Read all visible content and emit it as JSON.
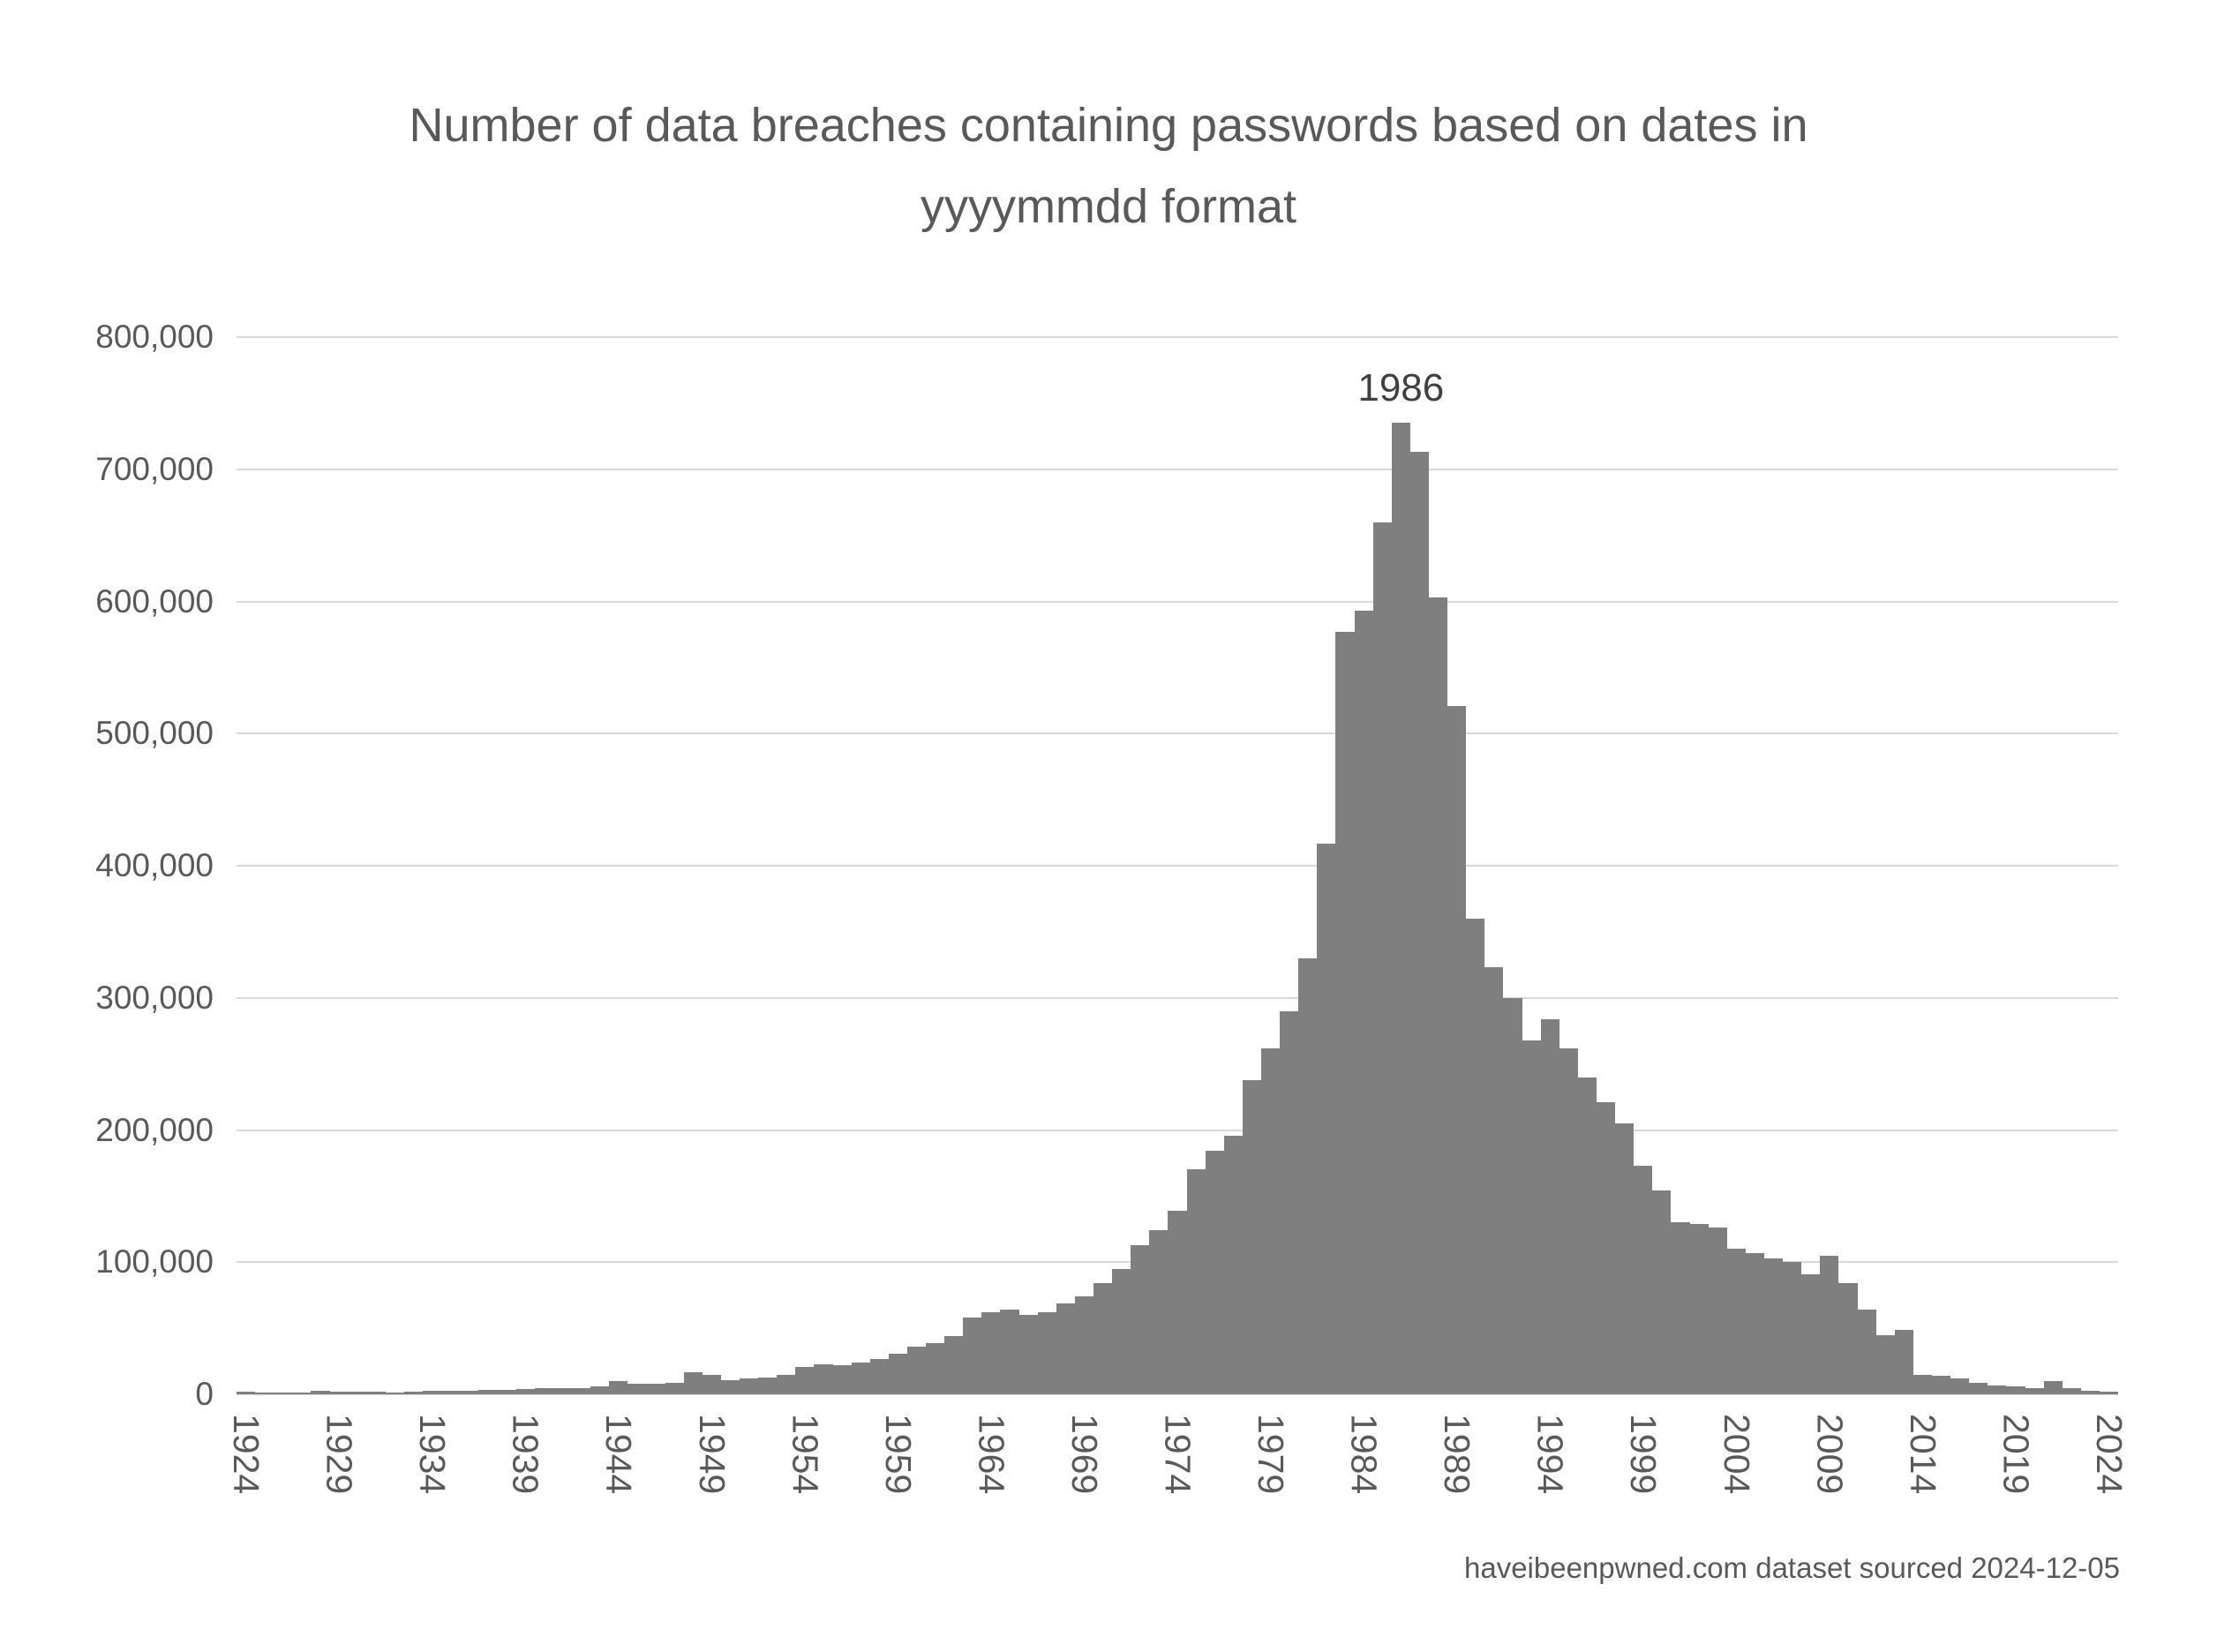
{
  "title": {
    "line1": "Number of data breaches containing passwords based on dates in",
    "line2": "yyyymmdd format"
  },
  "footer": "haveibeenpwned.com dataset sourced 2024-12-05",
  "annotation": {
    "label": "1986",
    "year": 1986
  },
  "colors": {
    "bar": "#7f7f7f",
    "text": "#595959",
    "gridline": "#d9d9d9",
    "background": "#ffffff"
  },
  "chart_data": {
    "type": "bar",
    "title": "Number of data breaches containing passwords based on dates in yyyymmdd format",
    "xlabel": "",
    "ylabel": "",
    "grid": true,
    "legend": false,
    "ylim": [
      0,
      800000
    ],
    "y_ticks": [
      0,
      100000,
      200000,
      300000,
      400000,
      500000,
      600000,
      700000,
      800000
    ],
    "y_tick_labels": [
      "0",
      "100,000",
      "200,000",
      "300,000",
      "400,000",
      "500,000",
      "600,000",
      "700,000",
      "800,000"
    ],
    "x_start": 1924,
    "x_end": 2024,
    "x_tick_interval": 5,
    "x_tick_labels": [
      "1924",
      "1929",
      "1934",
      "1939",
      "1944",
      "1949",
      "1954",
      "1959",
      "1964",
      "1969",
      "1974",
      "1979",
      "1984",
      "1989",
      "1994",
      "1999",
      "2004",
      "2009",
      "2014",
      "2019",
      "2024"
    ],
    "values": [
      2000,
      1500,
      1500,
      1500,
      2500,
      2000,
      2000,
      2000,
      1500,
      2000,
      2500,
      2500,
      3000,
      3500,
      3500,
      4000,
      4500,
      4500,
      5000,
      6000,
      10000,
      8000,
      8000,
      9000,
      17000,
      15000,
      11000,
      12000,
      13000,
      15000,
      21000,
      23000,
      22000,
      24000,
      27000,
      31000,
      36000,
      39000,
      44000,
      58000,
      62000,
      64000,
      60000,
      62000,
      69000,
      74000,
      84000,
      95000,
      113000,
      124000,
      139000,
      170000,
      184000,
      196000,
      238000,
      262000,
      290000,
      330000,
      417000,
      577000,
      593000,
      660000,
      735000,
      713000,
      603000,
      521000,
      360000,
      323000,
      300000,
      268000,
      284000,
      262000,
      240000,
      221000,
      205000,
      173000,
      154000,
      130000,
      129000,
      126000,
      110000,
      107000,
      103000,
      100000,
      91000,
      105000,
      84000,
      64000,
      45000,
      49000,
      15000,
      14000,
      12000,
      9000,
      7000,
      6000,
      5000,
      10000,
      5000,
      3000,
      2000
    ],
    "annotations": [
      {
        "x": 1986,
        "y": 735000,
        "text": "1986"
      }
    ],
    "source_note": "haveibeenpwned.com dataset sourced 2024-12-05"
  }
}
